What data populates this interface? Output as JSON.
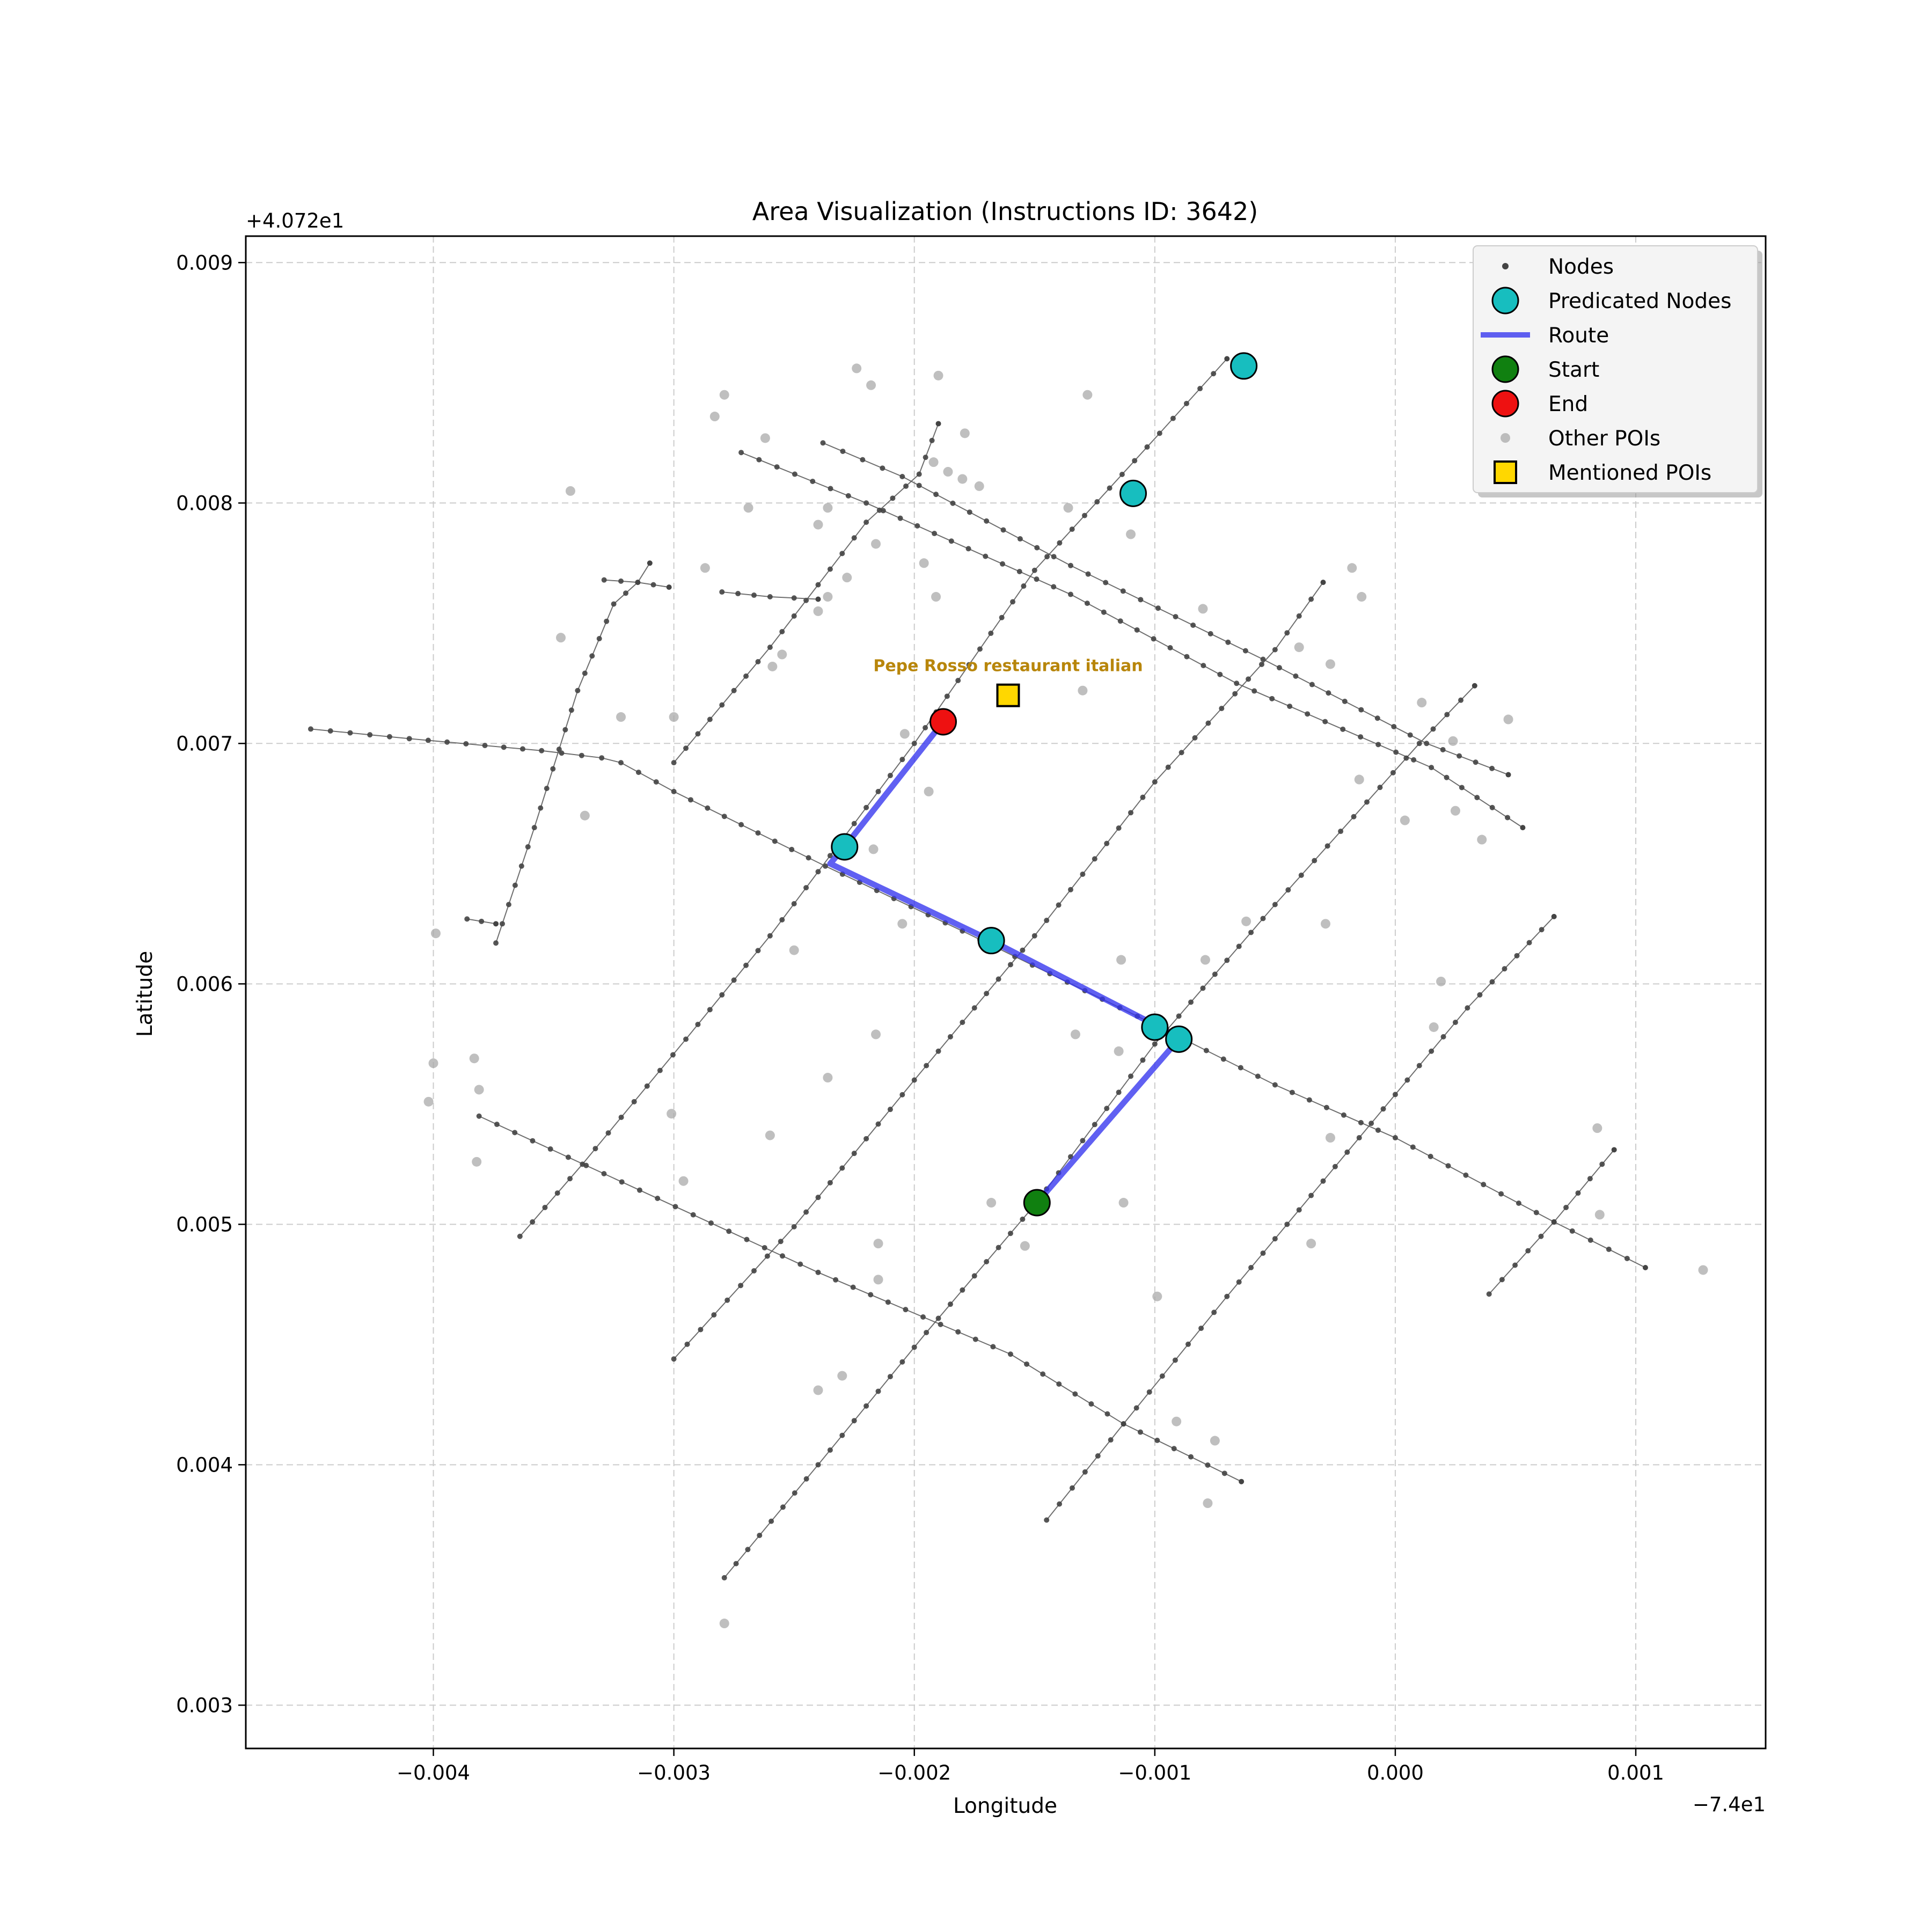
{
  "chart_data": {
    "type": "scatter",
    "title": "Area Visualization (Instructions ID: 3642)",
    "xlabel": "Longitude",
    "ylabel": "Latitude",
    "x_offset_label": "−7.4e1",
    "y_offset_label": "+4.072e1",
    "xlim": [
      -0.00478,
      0.00154
    ],
    "ylim": [
      0.00282,
      0.00911
    ],
    "x_ticks": [
      {
        "value": -0.004,
        "label": "−0.004"
      },
      {
        "value": -0.003,
        "label": "−0.003"
      },
      {
        "value": -0.002,
        "label": "−0.002"
      },
      {
        "value": -0.001,
        "label": "−0.001"
      },
      {
        "value": 0.0,
        "label": "0.000"
      },
      {
        "value": 0.001,
        "label": "0.001"
      }
    ],
    "y_ticks": [
      {
        "value": 0.003,
        "label": "0.003"
      },
      {
        "value": 0.004,
        "label": "0.004"
      },
      {
        "value": 0.005,
        "label": "0.005"
      },
      {
        "value": 0.006,
        "label": "0.006"
      },
      {
        "value": 0.007,
        "label": "0.007"
      },
      {
        "value": 0.008,
        "label": "0.008"
      },
      {
        "value": 0.009,
        "label": "0.009"
      }
    ],
    "grid": true,
    "legend_position": "top-right",
    "legend": [
      {
        "label": "Nodes",
        "marker": "small-dot"
      },
      {
        "label": "Predicated Nodes",
        "marker": "circle-cyan"
      },
      {
        "label": "Route",
        "marker": "line-blue"
      },
      {
        "label": "Start",
        "marker": "circle-green"
      },
      {
        "label": "End",
        "marker": "circle-red"
      },
      {
        "label": "Other POIs",
        "marker": "dot-gray"
      },
      {
        "label": "Mentioned POIs",
        "marker": "square-gold"
      }
    ],
    "colors": {
      "node": "#444444",
      "street": "#555555",
      "predicted": "#17bebf",
      "route": "#3333ee",
      "start": "#108010",
      "end": "#ee1111",
      "poi": "#aaaaaa",
      "mentioned": "#ffd700",
      "mentioned_label": "#b8860b",
      "grid": "#cccccc"
    },
    "streets": [
      [
        [
          -0.00451,
          0.00706
        ],
        [
          -0.0041,
          0.00702
        ],
        [
          -0.00355,
          0.00697
        ],
        [
          -0.0033,
          0.00694
        ],
        [
          -0.00322,
          0.00692
        ],
        [
          -0.003,
          0.0068
        ],
        [
          -0.00237,
          0.00649
        ],
        [
          -0.0018,
          0.00622
        ],
        [
          -0.001,
          0.00583
        ],
        [
          -0.0005,
          0.00558
        ],
        [
          0.0,
          0.00536
        ],
        [
          0.00066,
          0.00501
        ],
        [
          0.00104,
          0.00482
        ]
      ],
      [
        [
          -0.00381,
          0.00545
        ],
        [
          -0.0024,
          0.0048
        ],
        [
          -0.0016,
          0.00446
        ],
        [
          -0.00113,
          0.00417
        ],
        [
          -0.00064,
          0.00393
        ]
      ],
      [
        [
          -0.00272,
          0.00821
        ],
        [
          -0.0022,
          0.008
        ],
        [
          -0.00135,
          0.00762
        ],
        [
          -0.00066,
          0.00725
        ],
        [
          0.00015,
          0.0069
        ],
        [
          0.00053,
          0.00665
        ]
      ],
      [
        [
          -0.00238,
          0.00825
        ],
        [
          -0.00205,
          0.00811
        ],
        [
          -0.00135,
          0.00774
        ],
        [
          -0.00055,
          0.00735
        ],
        [
          0.00013,
          0.007
        ],
        [
          0.00047,
          0.00687
        ]
      ],
      [
        [
          -0.00364,
          0.00495
        ],
        [
          -0.00338,
          0.00525
        ],
        [
          -0.00295,
          0.00577
        ],
        [
          -0.0026,
          0.0062
        ],
        [
          -0.002,
          0.007
        ],
        [
          -0.0015,
          0.00772
        ],
        [
          -0.00098,
          0.00829
        ],
        [
          -0.0007,
          0.0086
        ]
      ],
      [
        [
          -0.003,
          0.00444
        ],
        [
          -0.0025,
          0.00499
        ],
        [
          -0.002,
          0.0056
        ],
        [
          -0.0015,
          0.0062
        ],
        [
          -0.001,
          0.00684
        ],
        [
          -0.0005,
          0.00739
        ],
        [
          -0.0003,
          0.00767
        ]
      ],
      [
        [
          -0.00279,
          0.00353
        ],
        [
          -0.0024,
          0.004
        ],
        [
          -0.00195,
          0.00455
        ],
        [
          -0.0015,
          0.00508
        ],
        [
          -0.001,
          0.00575
        ],
        [
          -0.0005,
          0.00633
        ],
        [
          0.0001,
          0.007
        ],
        [
          0.00033,
          0.00724
        ]
      ],
      [
        [
          -0.00145,
          0.00377
        ],
        [
          -0.00113,
          0.00417
        ],
        [
          -0.0007,
          0.0047
        ],
        [
          -0.0002,
          0.0053
        ],
        [
          0.0003,
          0.0059
        ],
        [
          0.00066,
          0.00628
        ]
      ],
      [
        [
          -0.003,
          0.00692
        ],
        [
          -0.0026,
          0.0074
        ],
        [
          -0.0022,
          0.00792
        ],
        [
          -0.00198,
          0.00812
        ],
        [
          -0.0019,
          0.00833
        ]
      ],
      [
        [
          -0.00374,
          0.00617
        ],
        [
          -0.00358,
          0.00665
        ],
        [
          -0.0034,
          0.00722
        ],
        [
          -0.00325,
          0.00758
        ],
        [
          -0.00315,
          0.00767
        ],
        [
          -0.0031,
          0.00775
        ]
      ],
      [
        [
          -0.00386,
          0.00627
        ],
        [
          -0.00374,
          0.00625
        ]
      ],
      [
        [
          -0.00329,
          0.00768
        ],
        [
          -0.00315,
          0.00767
        ],
        [
          -0.00302,
          0.00765
        ]
      ],
      [
        [
          -0.0028,
          0.00763
        ],
        [
          -0.0026,
          0.00761
        ],
        [
          -0.0024,
          0.0076
        ]
      ],
      [
        [
          0.00039,
          0.00471
        ],
        [
          0.00066,
          0.00501
        ],
        [
          0.00091,
          0.00531
        ]
      ]
    ],
    "other_pois": [
      [
        -0.00283,
        0.00836
      ],
      [
        -0.00279,
        0.00845
      ],
      [
        -0.00262,
        0.00827
      ],
      [
        -0.00224,
        0.00856
      ],
      [
        -0.00218,
        0.00849
      ],
      [
        -0.0019,
        0.00853
      ],
      [
        -0.00128,
        0.00845
      ],
      [
        -0.00179,
        0.00829
      ],
      [
        -0.00192,
        0.00817
      ],
      [
        -0.00186,
        0.00813
      ],
      [
        -0.0018,
        0.0081
      ],
      [
        -0.00173,
        0.00807
      ],
      [
        -0.00269,
        0.00798
      ],
      [
        -0.00236,
        0.00798
      ],
      [
        -0.0024,
        0.00791
      ],
      [
        -0.00136,
        0.00798
      ],
      [
        -0.00343,
        0.00805
      ],
      [
        -0.00216,
        0.00783
      ],
      [
        -0.0011,
        0.00787
      ],
      [
        -0.00287,
        0.00773
      ],
      [
        -0.00196,
        0.00775
      ],
      [
        -0.00228,
        0.00769
      ],
      [
        -0.00236,
        0.00761
      ],
      [
        -0.00191,
        0.00761
      ],
      [
        -0.0024,
        0.00755
      ],
      [
        -0.0008,
        0.00756
      ],
      [
        -0.00018,
        0.00773
      ],
      [
        -0.00014,
        0.00761
      ],
      [
        -0.00347,
        0.00744
      ],
      [
        -0.00255,
        0.00737
      ],
      [
        -0.00259,
        0.00732
      ],
      [
        -0.0004,
        0.0074
      ],
      [
        -0.00027,
        0.00733
      ],
      [
        -0.0013,
        0.00722
      ],
      [
        -0.00322,
        0.00711
      ],
      [
        -0.003,
        0.00711
      ],
      [
        0.00011,
        0.00717
      ],
      [
        0.00047,
        0.0071
      ],
      [
        -0.00204,
        0.00704
      ],
      [
        0.00024,
        0.00701
      ],
      [
        -0.00015,
        0.00685
      ],
      [
        4e-05,
        0.00668
      ],
      [
        0.00025,
        0.00672
      ],
      [
        0.00036,
        0.0066
      ],
      [
        -0.00337,
        0.0067
      ],
      [
        -0.00194,
        0.0068
      ],
      [
        -0.00217,
        0.00656
      ],
      [
        -0.00399,
        0.00621
      ],
      [
        -0.0025,
        0.00614
      ],
      [
        -0.00205,
        0.00625
      ],
      [
        -0.00062,
        0.00626
      ],
      [
        -0.00029,
        0.00625
      ],
      [
        -0.00114,
        0.0061
      ],
      [
        -0.00079,
        0.0061
      ],
      [
        0.00019,
        0.00601
      ],
      [
        0.00016,
        0.00582
      ],
      [
        -0.00133,
        0.00579
      ],
      [
        -0.00115,
        0.00572
      ],
      [
        -0.00216,
        0.00579
      ],
      [
        -0.004,
        0.00567
      ],
      [
        -0.00383,
        0.00569
      ],
      [
        -0.00381,
        0.00556
      ],
      [
        -0.00402,
        0.00551
      ],
      [
        -0.00236,
        0.00561
      ],
      [
        -0.00301,
        0.00546
      ],
      [
        -0.00027,
        0.00536
      ],
      [
        0.00084,
        0.0054
      ],
      [
        -0.0026,
        0.00537
      ],
      [
        -0.00382,
        0.00526
      ],
      [
        -0.00296,
        0.00518
      ],
      [
        -0.00168,
        0.00509
      ],
      [
        -0.00113,
        0.00509
      ],
      [
        0.00085,
        0.00504
      ],
      [
        -0.00215,
        0.00492
      ],
      [
        -0.00035,
        0.00492
      ],
      [
        -0.00154,
        0.00491
      ],
      [
        -0.00215,
        0.00477
      ],
      [
        -0.00099,
        0.0047
      ],
      [
        0.00128,
        0.00481
      ],
      [
        -0.0024,
        0.00431
      ],
      [
        -0.0023,
        0.00437
      ],
      [
        -0.00091,
        0.00418
      ],
      [
        -0.00075,
        0.0041
      ],
      [
        -0.00078,
        0.00384
      ],
      [
        -0.00279,
        0.00334
      ]
    ],
    "predicted_nodes": [
      [
        -0.00063,
        0.00857
      ],
      [
        -0.00109,
        0.00804
      ],
      [
        -0.00229,
        0.00657
      ],
      [
        -0.00168,
        0.00618
      ],
      [
        -0.001,
        0.00582
      ],
      [
        -0.0009,
        0.00577
      ]
    ],
    "route": [
      [
        -0.00149,
        0.00509
      ],
      [
        -0.0009,
        0.00577
      ],
      [
        -0.001,
        0.00583
      ],
      [
        -0.00168,
        0.00618
      ],
      [
        -0.00235,
        0.0065
      ],
      [
        -0.00229,
        0.00657
      ],
      [
        -0.00188,
        0.00709
      ]
    ],
    "start": [
      -0.00149,
      0.00509
    ],
    "end": [
      -0.00188,
      0.00709
    ],
    "mentioned_pois": [
      {
        "label": "Pepe Rosso restaurant italian",
        "position": [
          -0.00161,
          0.0072
        ]
      }
    ]
  }
}
